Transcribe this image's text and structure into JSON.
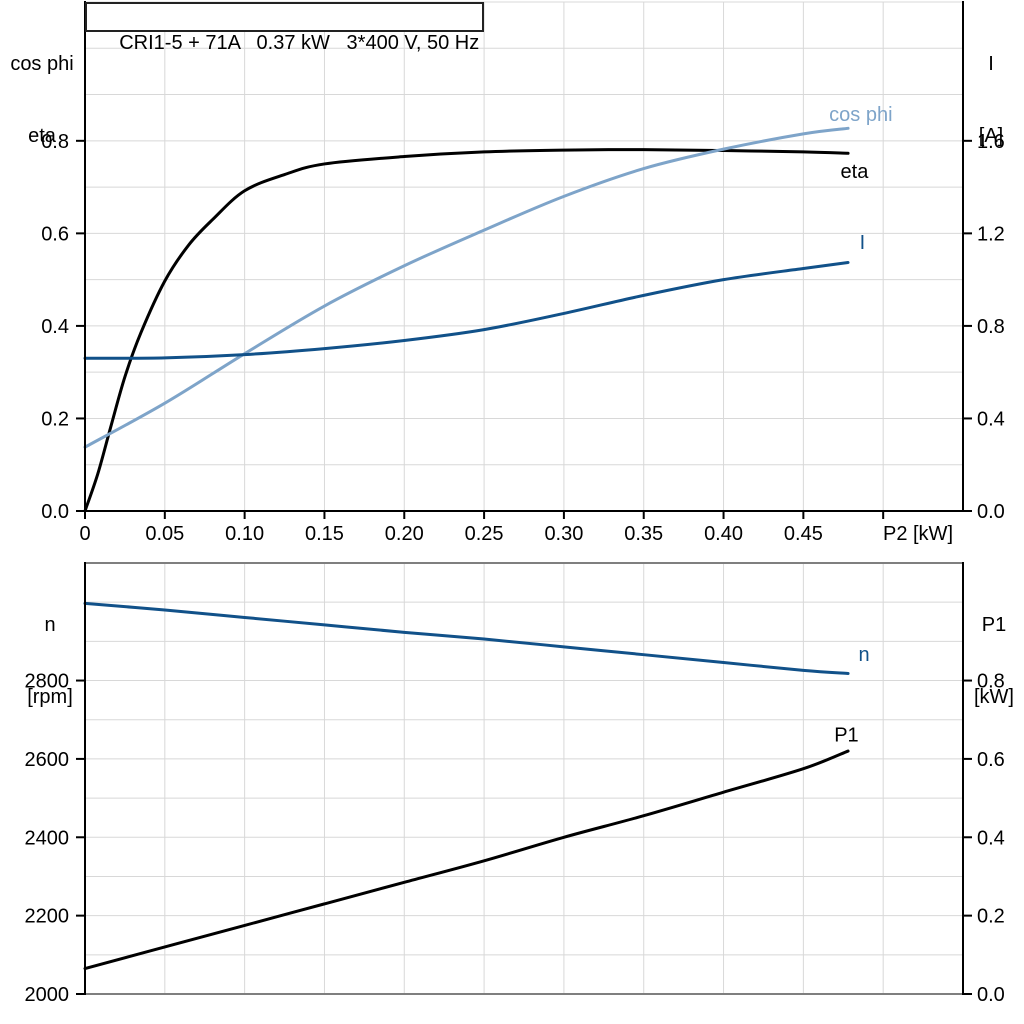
{
  "title_box": {
    "text": "CRI1-5 + 71A   0.37 kW   3*400 V, 50 Hz"
  },
  "axis_corner_labels": {
    "top_left_line1": "cos phi",
    "top_left_line2": "eta",
    "top_right_line1": "I",
    "top_right_line2": "[A]",
    "bottom_left_line1": "n",
    "bottom_left_line2": "[rpm]",
    "bottom_right_line1": "P1",
    "bottom_right_line2": "[kW]"
  },
  "colors": {
    "curve_black": "#000000",
    "cos_phi_blue": "#7ea4c9",
    "dark_blue": "#115189",
    "grid": "#d8d8d8",
    "panel_border": "#7f7f7f",
    "axis": "#000000"
  },
  "chart_data": [
    {
      "type": "line",
      "panel": "top",
      "title": "CRI1-5 + 71A   0.37 kW   3*400 V, 50 Hz",
      "grid": true,
      "legend": "inline-labels",
      "x_axis": {
        "label": "P2 [kW]",
        "lim": [
          0,
          0.55
        ],
        "grid_step": 0.05,
        "tick_values": [
          0,
          0.05,
          0.1,
          0.15,
          0.2,
          0.25,
          0.3,
          0.35,
          0.4,
          0.45
        ],
        "tick_labels": [
          "0",
          "0.05",
          "0.10",
          "0.15",
          "0.20",
          "0.25",
          "0.30",
          "0.35",
          "0.40",
          "0.45"
        ]
      },
      "left_axis": {
        "name": "cos phi / eta",
        "lim": [
          0,
          1.1
        ],
        "grid_step": 0.1,
        "tick_values": [
          0,
          0.2,
          0.4,
          0.6,
          0.8
        ],
        "tick_labels": [
          "0.0",
          "0.2",
          "0.4",
          "0.6",
          "0.8"
        ]
      },
      "right_axis": {
        "name": "I [A]",
        "lim": [
          0,
          2.2
        ],
        "tick_values": [
          0,
          0.4,
          0.8,
          1.2,
          1.6
        ],
        "tick_labels": [
          "0.0",
          "0.4",
          "0.8",
          "1.2",
          "1.6"
        ]
      },
      "series": [
        {
          "name": "eta",
          "axis": "left",
          "color": "curve_black",
          "label": "eta",
          "label_at": [
            0.482,
            0.735
          ],
          "x": [
            0,
            0.008,
            0.016,
            0.025,
            0.035,
            0.05,
            0.065,
            0.08,
            0.1,
            0.125,
            0.15,
            0.2,
            0.25,
            0.3,
            0.35,
            0.4,
            0.45,
            0.478
          ],
          "y": [
            0,
            0.08,
            0.18,
            0.29,
            0.385,
            0.497,
            0.575,
            0.63,
            0.692,
            0.727,
            0.75,
            0.766,
            0.776,
            0.78,
            0.781,
            0.779,
            0.776,
            0.773
          ]
        },
        {
          "name": "cos phi",
          "axis": "left",
          "color": "cos_phi_blue",
          "label": "cos phi",
          "label_at": [
            0.486,
            0.858
          ],
          "x": [
            0,
            0.05,
            0.1,
            0.15,
            0.2,
            0.25,
            0.3,
            0.35,
            0.4,
            0.45,
            0.478
          ],
          "y": [
            0.138,
            0.233,
            0.34,
            0.443,
            0.53,
            0.607,
            0.68,
            0.74,
            0.782,
            0.815,
            0.827
          ]
        },
        {
          "name": "I",
          "axis": "right",
          "color": "dark_blue",
          "label": "I",
          "label_at": [
            0.487,
            1.162
          ],
          "x": [
            0,
            0.05,
            0.1,
            0.15,
            0.2,
            0.25,
            0.3,
            0.35,
            0.4,
            0.45,
            0.478
          ],
          "y": [
            0.66,
            0.662,
            0.676,
            0.702,
            0.737,
            0.784,
            0.854,
            0.932,
            1.0,
            1.048,
            1.074
          ]
        }
      ]
    },
    {
      "type": "line",
      "panel": "bottom",
      "title": "",
      "grid": true,
      "legend": "inline-labels",
      "x_axis": {
        "label": "",
        "lim": [
          0,
          0.55
        ],
        "grid_step": 0.05,
        "tick_values": [],
        "tick_labels": []
      },
      "left_axis": {
        "name": "n [rpm]",
        "lim": [
          2000,
          3100
        ],
        "grid_step": 100,
        "tick_values": [
          2000,
          2200,
          2400,
          2600,
          2800
        ],
        "tick_labels": [
          "2000",
          "2200",
          "2400",
          "2600",
          "2800"
        ]
      },
      "right_axis": {
        "name": "P1 [kW]",
        "lim": [
          0,
          1.1
        ],
        "tick_values": [
          0,
          0.2,
          0.4,
          0.6,
          0.8
        ],
        "tick_labels": [
          "0.0",
          "0.2",
          "0.4",
          "0.6",
          "0.8"
        ]
      },
      "series": [
        {
          "name": "n",
          "axis": "left",
          "color": "dark_blue",
          "label": "n",
          "label_at": [
            0.488,
            2868
          ],
          "x": [
            0,
            0.05,
            0.1,
            0.15,
            0.2,
            0.25,
            0.3,
            0.35,
            0.4,
            0.45,
            0.478
          ],
          "y": [
            2997,
            2980,
            2961,
            2942,
            2923,
            2906,
            2886,
            2866,
            2846,
            2826,
            2818
          ]
        },
        {
          "name": "P1",
          "axis": "right",
          "color": "curve_black",
          "label": "P1",
          "label_at": [
            0.477,
            0.662
          ],
          "x": [
            0,
            0.05,
            0.1,
            0.15,
            0.2,
            0.25,
            0.3,
            0.35,
            0.4,
            0.45,
            0.478
          ],
          "y": [
            0.065,
            0.12,
            0.175,
            0.23,
            0.285,
            0.34,
            0.4,
            0.455,
            0.515,
            0.575,
            0.62
          ]
        }
      ]
    }
  ]
}
